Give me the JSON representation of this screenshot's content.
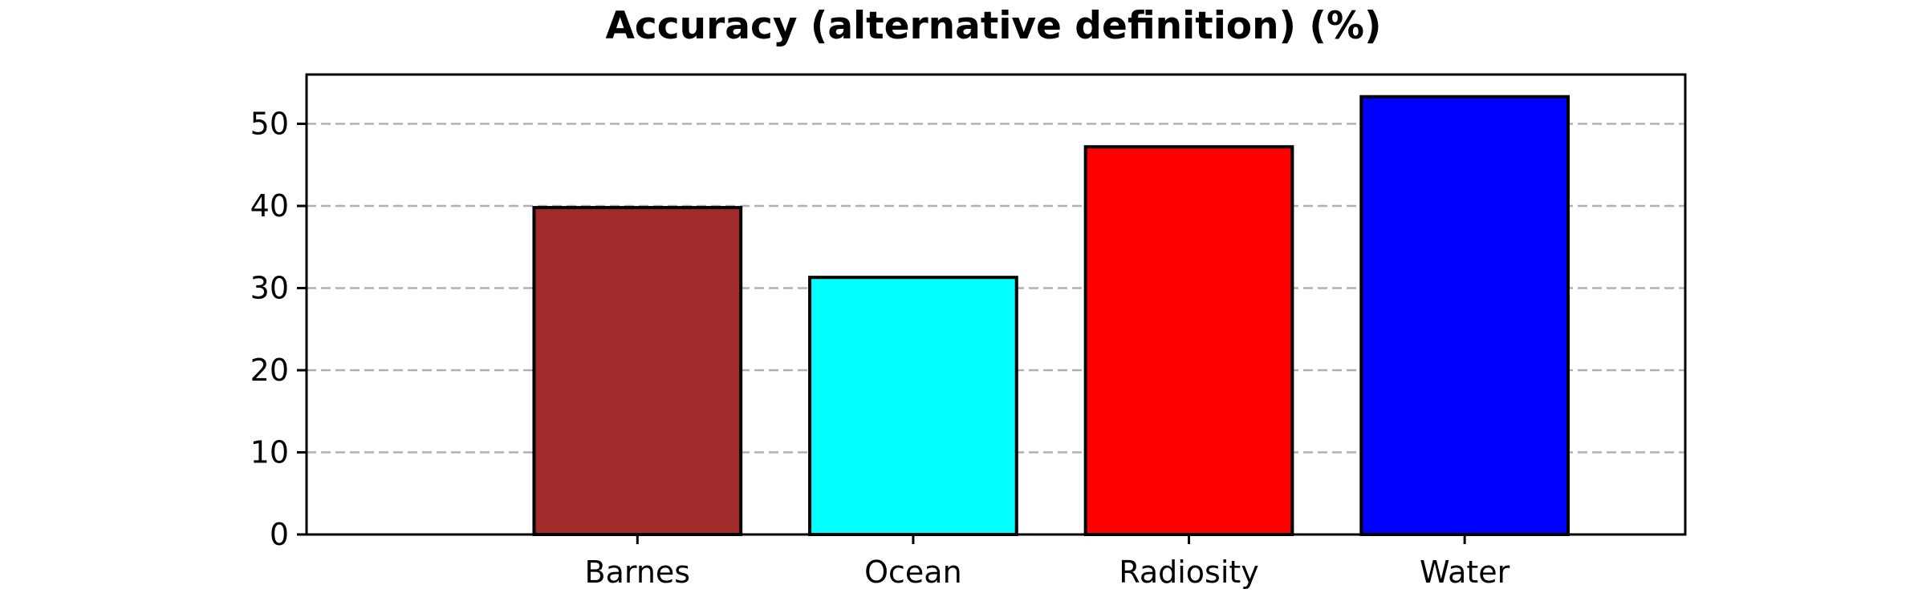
{
  "chart_data": {
    "type": "bar",
    "title": "Accuracy (alternative definition) (%)",
    "xlabel": "",
    "ylabel": "",
    "categories": [
      "Barnes",
      "Ocean",
      "Radiosity",
      "Water"
    ],
    "values": [
      39.8,
      31.3,
      47.2,
      53.3
    ],
    "colors": [
      "#a12a2a",
      "#00ffff",
      "#ff0000",
      "#0000ff"
    ],
    "ylim": [
      0,
      56
    ],
    "xlim": [
      -1.2,
      3.8
    ],
    "yticks": [
      0,
      10,
      20,
      30,
      40,
      50
    ],
    "grid": "y-dashed",
    "legend": "none"
  }
}
